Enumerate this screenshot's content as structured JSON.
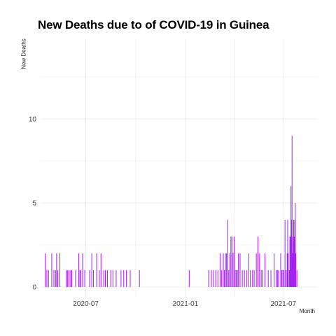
{
  "chart_data": {
    "type": "bar",
    "title": "New Deaths due to of COVID-19 in Guinea",
    "xlabel": "Month",
    "ylabel": "New Deaths",
    "ylim": [
      0,
      13.5
    ],
    "xlim": [
      "2020-04-11",
      "2021-08-31"
    ],
    "grid": true,
    "y_ticks": [
      {
        "value": 0,
        "label": "0"
      },
      {
        "value": 5,
        "label": "5"
      },
      {
        "value": 10,
        "label": "10"
      }
    ],
    "x_ticks": [
      {
        "date": "2020-07-01",
        "label": "2020-07"
      },
      {
        "date": "2021-01-01",
        "label": "2021-01"
      },
      {
        "date": "2021-07-01",
        "label": "2021-07"
      }
    ],
    "bar_color": "#a020f0",
    "series": [
      {
        "x": [
          "2020-04-17",
          "2020-04-20",
          "2020-04-23",
          "2020-04-29",
          "2020-05-03",
          "2020-05-06",
          "2020-05-08",
          "2020-05-10",
          "2020-05-14",
          "2020-05-26",
          "2020-05-28",
          "2020-05-31",
          "2020-06-03",
          "2020-06-05",
          "2020-06-12",
          "2020-06-18",
          "2020-06-20",
          "2020-06-22",
          "2020-06-25",
          "2020-06-29",
          "2020-07-08",
          "2020-07-12",
          "2020-07-15",
          "2020-07-21",
          "2020-07-26",
          "2020-07-29",
          "2020-08-03",
          "2020-08-06",
          "2020-08-10",
          "2020-08-16",
          "2020-08-20",
          "2020-08-26",
          "2020-09-04",
          "2020-09-09",
          "2020-09-14",
          "2020-09-21",
          "2020-10-08",
          "2021-01-08",
          "2021-02-13",
          "2021-02-18",
          "2021-02-22",
          "2021-02-26",
          "2021-03-02",
          "2021-03-06",
          "2021-03-09",
          "2021-03-12",
          "2021-03-14",
          "2021-03-16",
          "2021-03-18",
          "2021-03-20",
          "2021-03-22",
          "2021-03-24",
          "2021-03-26",
          "2021-03-28",
          "2021-03-30",
          "2021-04-01",
          "2021-04-03",
          "2021-04-05",
          "2021-04-07",
          "2021-04-09",
          "2021-04-12",
          "2021-04-16",
          "2021-04-20",
          "2021-04-24",
          "2021-04-28",
          "2021-05-01",
          "2021-05-05",
          "2021-05-08",
          "2021-05-12",
          "2021-05-15",
          "2021-05-18",
          "2021-05-21",
          "2021-05-24",
          "2021-05-28",
          "2021-06-03",
          "2021-06-08",
          "2021-06-14",
          "2021-06-18",
          "2021-06-20",
          "2021-06-22",
          "2021-06-26",
          "2021-06-28",
          "2021-06-30",
          "2021-07-02",
          "2021-07-04",
          "2021-07-06",
          "2021-07-08",
          "2021-07-09",
          "2021-07-10",
          "2021-07-12",
          "2021-07-13",
          "2021-07-14",
          "2021-07-15",
          "2021-07-16",
          "2021-07-17",
          "2021-07-18",
          "2021-07-19",
          "2021-07-20",
          "2021-07-21",
          "2021-07-22",
          "2021-07-23",
          "2021-07-24",
          "2021-07-26"
        ],
        "values": [
          2,
          1,
          1,
          2,
          1,
          1,
          2,
          1,
          2,
          1,
          1,
          1,
          1,
          1,
          1,
          2,
          1,
          1,
          2,
          1,
          1,
          2,
          1,
          2,
          1,
          2,
          1,
          1,
          1,
          1,
          1,
          1,
          1,
          1,
          1,
          1,
          1,
          1,
          1,
          1,
          1,
          1,
          1,
          2,
          1,
          2,
          1,
          2,
          2,
          4,
          1,
          2,
          3,
          3,
          2,
          3,
          1,
          1,
          1,
          2,
          2,
          1,
          1,
          1,
          2,
          1,
          1,
          1,
          2,
          3,
          2,
          1,
          1,
          2,
          1,
          1,
          2,
          1,
          1,
          1,
          2,
          1,
          1,
          1,
          4,
          1,
          2,
          4,
          2,
          1,
          3,
          3,
          6,
          4,
          9,
          2,
          3,
          4,
          3,
          4,
          5,
          2,
          1
        ]
      }
    ]
  }
}
